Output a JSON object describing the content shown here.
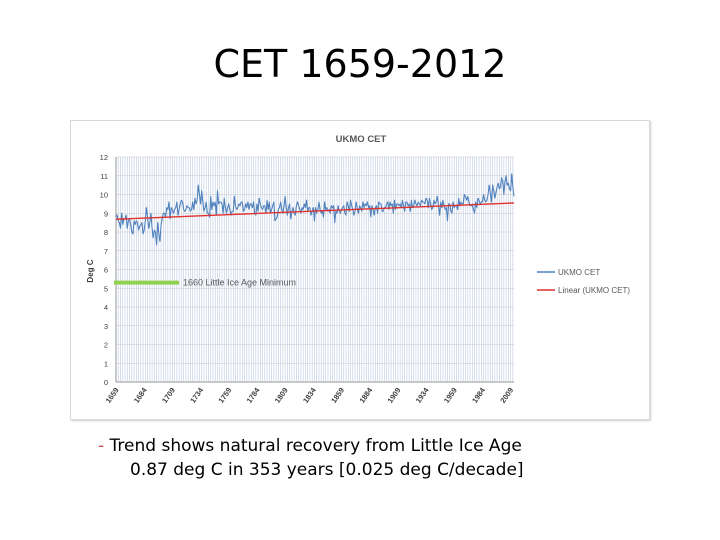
{
  "slide": {
    "title": "CET 1659-2012",
    "caption_dash": "-",
    "caption_line1": "Trend shows natural recovery from Little Ice Age",
    "caption_line2": "0.87 deg C in 353 years [0.025 deg C/decade]"
  },
  "colors": {
    "series": "#4f81bd",
    "trend": "#e0312d",
    "minimum_marker": "#92d050",
    "grid": "#a6b8d8"
  },
  "chart_data": {
    "type": "line",
    "title": "UKMO CET",
    "ylabel": "Deg C",
    "xlabel": "",
    "xlim": [
      1659,
      2012
    ],
    "ylim": [
      0,
      12
    ],
    "yticks": [
      "0",
      "1",
      "2",
      "3",
      "4",
      "5",
      "6",
      "7",
      "8",
      "9",
      "10",
      "11",
      "12"
    ],
    "xticks": [
      "1659",
      "1684",
      "1709",
      "1734",
      "1759",
      "1784",
      "1809",
      "1834",
      "1859",
      "1884",
      "1909",
      "1934",
      "1959",
      "1984",
      "2009"
    ],
    "grid": true,
    "legend": {
      "position": "right",
      "entries": [
        "UKMO CET",
        "Linear (UKMO CET)"
      ]
    },
    "annotation": {
      "label": "1660 Little Ice Age Minimum",
      "y": 5.3
    },
    "series": [
      {
        "name": "UKMO CET",
        "x_start": 1659,
        "values": [
          8.8,
          8.9,
          8.6,
          8.5,
          8.2,
          9.0,
          8.4,
          8.7,
          8.7,
          8.9,
          8.2,
          8.6,
          8.7,
          8.4,
          8.0,
          7.9,
          8.6,
          8.4,
          8.6,
          8.5,
          8.1,
          8.3,
          8.4,
          8.5,
          7.9,
          8.1,
          8.6,
          9.3,
          8.8,
          8.2,
          8.5,
          9.0,
          8.2,
          7.7,
          8.1,
          8.0,
          7.3,
          8.5,
          7.9,
          7.5,
          8.4,
          8.7,
          9.0,
          9.0,
          8.8,
          9.3,
          9.2,
          9.6,
          8.7,
          9.3,
          9.2,
          9.0,
          9.2,
          9.3,
          9.6,
          8.9,
          9.2,
          9.5,
          9.7,
          9.6,
          9.2,
          9.1,
          9.2,
          9.4,
          9.3,
          9.3,
          9.1,
          9.2,
          9.6,
          9.2,
          9.8,
          9.5,
          9.7,
          10.5,
          10.0,
          9.5,
          10.2,
          9.6,
          9.1,
          9.3,
          9.6,
          9.0,
          9.0,
          8.8,
          9.9,
          9.2,
          9.6,
          9.4,
          9.6,
          8.9,
          10.2,
          9.5,
          9.6,
          9.6,
          9.5,
          9.0,
          9.8,
          9.3,
          9.0,
          9.3,
          9.5,
          9.2,
          8.9,
          9.1,
          9.1,
          9.9,
          9.4,
          9.2,
          9.3,
          9.5,
          9.4,
          9.6,
          9.6,
          9.1,
          9.2,
          9.5,
          9.3,
          9.6,
          9.2,
          9.5,
          9.5,
          9.3,
          9.6,
          9.0,
          8.9,
          9.5,
          9.1,
          9.8,
          9.5,
          9.3,
          9.2,
          9.4,
          9.4,
          9.0,
          9.7,
          9.2,
          9.6,
          9.0,
          9.2,
          9.4,
          9.6,
          8.6,
          8.7,
          8.8,
          9.2,
          9.3,
          9.6,
          9.2,
          9.0,
          9.4,
          9.9,
          9.3,
          8.9,
          9.3,
          9.5,
          8.7,
          9.1,
          9.3,
          9.0,
          8.9,
          9.4,
          9.6,
          9.4,
          9.2,
          9.0,
          9.3,
          9.2,
          9.5,
          9.3,
          9.7,
          9.1,
          9.3,
          9.3,
          8.9,
          9.1,
          9.3,
          8.6,
          9.3,
          9.0,
          9.2,
          9.6,
          9.2,
          9.0,
          9.1,
          8.8,
          9.6,
          9.2,
          9.3,
          9.1,
          9.2,
          9.0,
          9.4,
          9.3,
          9.4,
          8.5,
          9.1,
          9.0,
          9.4,
          9.1,
          9.0,
          9.2,
          9.3,
          9.4,
          9.0,
          8.9,
          9.6,
          9.4,
          9.1,
          9.7,
          9.4,
          9.2,
          8.9,
          9.1,
          9.6,
          9.3,
          9.0,
          9.4,
          9.3,
          9.1,
          9.6,
          9.3,
          9.5,
          9.4,
          9.6,
          9.3,
          9.4,
          8.8,
          9.4,
          9.2,
          8.9,
          9.3,
          9.4,
          9.0,
          9.6,
          9.5,
          9.5,
          9.1,
          9.1,
          9.3,
          9.3,
          9.5,
          9.6,
          9.2,
          9.6,
          9.4,
          9.5,
          9.0,
          9.7,
          9.2,
          9.5,
          9.5,
          9.4,
          9.5,
          9.3,
          9.7,
          9.4,
          9.1,
          9.6,
          9.6,
          9.4,
          9.5,
          9.1,
          9.7,
          9.3,
          9.4,
          9.7,
          9.5,
          9.4,
          9.6,
          9.5,
          9.4,
          9.7,
          9.6,
          9.6,
          9.5,
          9.8,
          9.7,
          9.3,
          9.8,
          9.5,
          9.2,
          9.3,
          9.7,
          9.5,
          9.6,
          9.9,
          9.4,
          8.9,
          9.6,
          9.3,
          9.7,
          9.4,
          9.2,
          9.3,
          8.6,
          9.5,
          9.5,
          9.1,
          9.0,
          9.6,
          9.3,
          9.4,
          9.4,
          9.2,
          9.8,
          9.4,
          9.6,
          9.5,
          9.5,
          10.0,
          9.9,
          9.7,
          9.9,
          9.6,
          9.4,
          9.4,
          9.5,
          9.2,
          9.0,
          9.6,
          9.3,
          9.8,
          9.7,
          9.5,
          9.6,
          9.6,
          10.0,
          9.7,
          9.6,
          9.7,
          10.0,
          10.5,
          10.1,
          9.6,
          10.5,
          10.2,
          9.8,
          10.1,
          10.4,
          10.6,
          10.3,
          10.4,
          10.9,
          10.7,
          10.0,
          10.7,
          11.0,
          10.5,
          10.6,
          10.3,
          10.2,
          11.1,
          10.4,
          9.9
        ]
      },
      {
        "name": "Linear (UKMO CET)",
        "type": "trend",
        "from": [
          1659,
          8.68
        ],
        "to": [
          2012,
          9.55
        ]
      }
    ]
  }
}
